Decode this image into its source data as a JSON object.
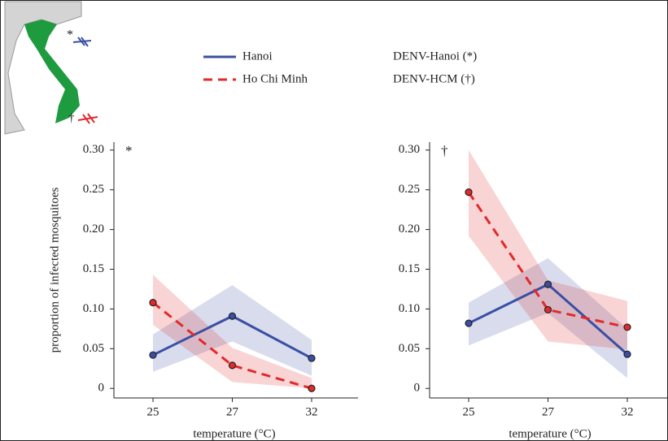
{
  "header": {
    "notes": [
      "DENV-Hanoi (*)",
      "DENV-HCM (†)"
    ]
  },
  "chart_data": [
    {
      "type": "line",
      "annotation": "*",
      "xlabel": "temperature (°C)",
      "ylabel": "proportion of infected mosquitoes",
      "categories": [
        "25",
        "27",
        "32"
      ],
      "ylim": [
        -0.012,
        0.31
      ],
      "yticks": [
        0,
        0.05,
        {
          "value": 0.1,
          "label": "0.10"
        },
        0.15,
        {
          "value": 0.2,
          "label": "0.20"
        },
        0.25,
        {
          "value": 0.3,
          "label": "0.30"
        }
      ],
      "series": [
        {
          "name": "Hanoi",
          "color": "#3a4fa3",
          "dash": false,
          "values": [
            0.042,
            0.091,
            0.038
          ],
          "lower": [
            0.021,
            0.059,
            0.016
          ],
          "upper": [
            0.068,
            0.13,
            0.061
          ]
        },
        {
          "name": "Ho Chi Minh",
          "color": "#e2292b",
          "dash": true,
          "values": [
            0.108,
            0.029,
            0
          ],
          "lower": [
            0.08,
            0.008,
            0
          ],
          "upper": [
            0.143,
            0.051,
            0.013
          ]
        }
      ]
    },
    {
      "type": "line",
      "annotation": "†",
      "xlabel": "temperature (°C)",
      "categories": [
        "25",
        "27",
        "32"
      ],
      "ylim": [
        -0.012,
        0.31
      ],
      "yticks": [
        0,
        0.05,
        {
          "value": 0.1,
          "label": "0.10"
        },
        0.15,
        {
          "value": 0.2,
          "label": "0.20"
        },
        0.25,
        {
          "value": 0.3,
          "label": "0.30"
        }
      ],
      "series": [
        {
          "name": "Hanoi",
          "color": "#3a4fa3",
          "dash": false,
          "values": [
            0.082,
            0.131,
            0.043
          ],
          "lower": [
            0.054,
            0.095,
            0.013
          ],
          "upper": [
            0.108,
            0.164,
            0.075
          ]
        },
        {
          "name": "Ho Chi Minh",
          "color": "#e2292b",
          "dash": true,
          "values": [
            0.247,
            0.099,
            0.077
          ],
          "lower": [
            0.192,
            0.059,
            0.049
          ],
          "upper": [
            0.3,
            0.136,
            0.11
          ]
        }
      ]
    }
  ]
}
